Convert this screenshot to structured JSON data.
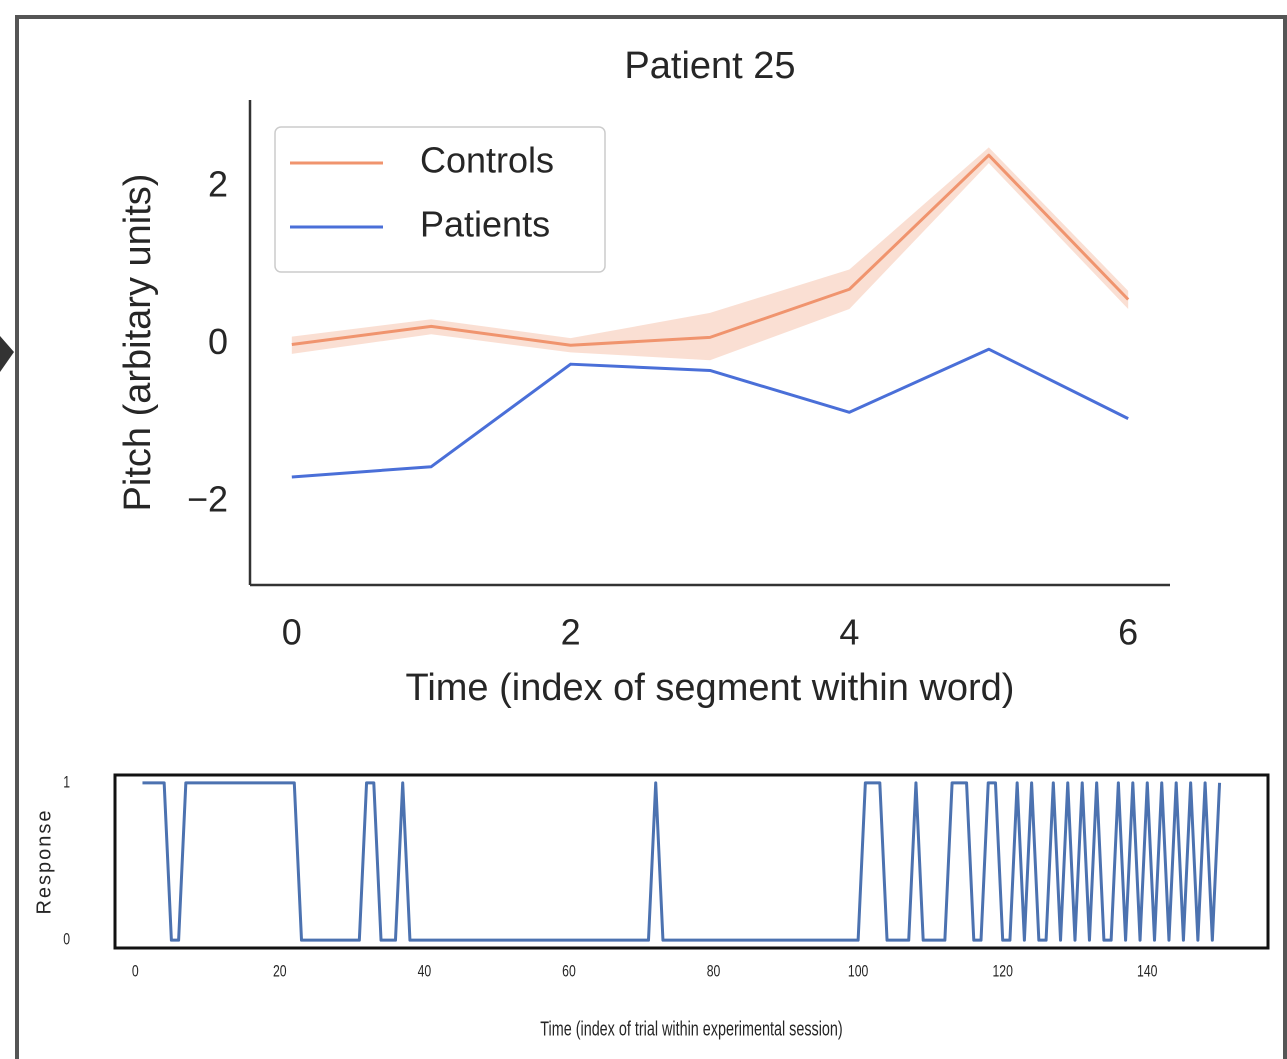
{
  "chart_data": [
    {
      "type": "line",
      "title": "Patient 25",
      "xlabel": "Time (index of segment within word)",
      "ylabel": "Pitch (arbitary units)",
      "x": [
        0,
        1,
        2,
        3,
        4,
        5,
        6
      ],
      "series": [
        {
          "name": "Controls",
          "color": "#f0946e",
          "values": [
            0.0,
            0.23,
            -0.01,
            0.09,
            0.7,
            2.4,
            0.57
          ],
          "lower": [
            -0.12,
            0.13,
            -0.1,
            -0.2,
            0.45,
            2.3,
            0.45
          ],
          "upper": [
            0.1,
            0.32,
            0.08,
            0.4,
            0.95,
            2.5,
            0.68
          ]
        },
        {
          "name": "Patients",
          "color": "#4a6fd8",
          "values": [
            -1.68,
            -1.55,
            -0.25,
            -0.33,
            -0.86,
            -0.06,
            -0.94
          ]
        }
      ],
      "xlim": [
        -0.3,
        6.3
      ],
      "ylim": [
        -3.05,
        3.1
      ],
      "xticks": [
        0,
        2,
        4,
        6
      ],
      "yticks": [
        {
          "value": -2,
          "label": "−2"
        },
        0,
        2
      ],
      "legend": "upper left",
      "grid": false
    },
    {
      "type": "line",
      "xlabel": "Time (index of trial within experimental session)",
      "ylabel": "Response",
      "x": [
        1,
        2,
        3,
        4,
        5,
        6,
        7,
        8,
        9,
        10,
        11,
        12,
        13,
        14,
        15,
        16,
        17,
        18,
        19,
        20,
        21,
        22,
        23,
        24,
        25,
        26,
        27,
        28,
        29,
        30,
        31,
        32,
        33,
        34,
        35,
        36,
        37,
        38,
        39,
        40,
        41,
        42,
        43,
        44,
        45,
        46,
        47,
        48,
        49,
        50,
        51,
        52,
        53,
        54,
        55,
        56,
        57,
        58,
        59,
        60,
        61,
        62,
        63,
        64,
        65,
        66,
        67,
        68,
        69,
        70,
        71,
        72,
        73,
        74,
        75,
        76,
        77,
        78,
        79,
        80,
        81,
        82,
        83,
        84,
        85,
        86,
        87,
        88,
        89,
        90,
        91,
        92,
        93,
        94,
        95,
        96,
        97,
        98,
        99,
        100,
        101,
        102,
        103,
        104,
        105,
        106,
        107,
        108,
        109,
        110,
        111,
        112,
        113,
        114,
        115,
        116,
        117,
        118,
        119,
        120,
        121,
        122,
        123,
        124,
        125,
        126,
        127,
        128,
        129,
        130,
        131,
        132,
        133,
        134,
        135,
        136,
        137,
        138,
        139,
        140,
        141,
        142,
        143,
        144,
        145,
        146,
        147,
        148,
        149,
        150
      ],
      "series": [
        {
          "color": "#4c72b0",
          "values": [
            1,
            1,
            1,
            1,
            0,
            0,
            1,
            1,
            1,
            1,
            1,
            1,
            1,
            1,
            1,
            1,
            1,
            1,
            1,
            1,
            1,
            1,
            0,
            0,
            0,
            0,
            0,
            0,
            0,
            0,
            0,
            1,
            1,
            0,
            0,
            0,
            1,
            0,
            0,
            0,
            0,
            0,
            0,
            0,
            0,
            0,
            0,
            0,
            0,
            0,
            0,
            0,
            0,
            0,
            0,
            0,
            0,
            0,
            0,
            0,
            0,
            0,
            0,
            0,
            0,
            0,
            0,
            0,
            0,
            0,
            0,
            1,
            0,
            0,
            0,
            0,
            0,
            0,
            0,
            0,
            0,
            0,
            0,
            0,
            0,
            0,
            0,
            0,
            0,
            0,
            0,
            0,
            0,
            0,
            0,
            0,
            0,
            0,
            0,
            0,
            1,
            1,
            1,
            0,
            0,
            0,
            0,
            1,
            0,
            0,
            0,
            0,
            1,
            1,
            1,
            0,
            0,
            1,
            1,
            0,
            0,
            1,
            0,
            1,
            0,
            0,
            1,
            0,
            1,
            0,
            1,
            0,
            1,
            0,
            0,
            1,
            0,
            1,
            0,
            1,
            0,
            1,
            0,
            1,
            0,
            1,
            0,
            1,
            0,
            1
          ]
        }
      ],
      "xlim": [
        -2.8,
        156.7
      ],
      "ylim": [
        -0.05,
        1.05
      ],
      "xticks": [
        0,
        20,
        40,
        60,
        80,
        100,
        120,
        140
      ],
      "yticks": [
        0,
        1
      ],
      "grid": false
    }
  ]
}
